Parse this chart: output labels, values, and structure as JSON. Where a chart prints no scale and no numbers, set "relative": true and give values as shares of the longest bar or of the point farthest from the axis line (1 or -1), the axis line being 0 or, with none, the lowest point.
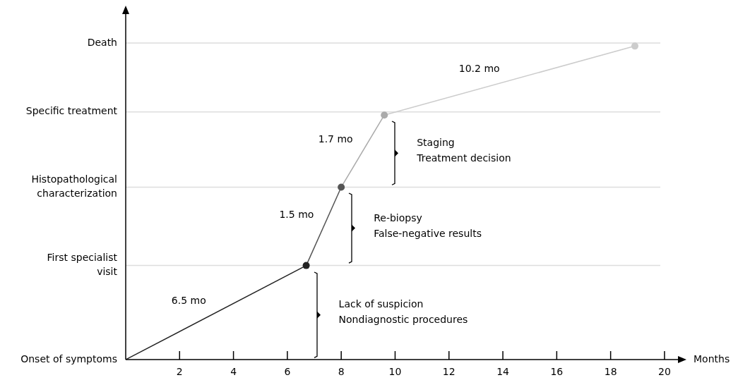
{
  "chart_data": {
    "type": "line",
    "xlabel": "Months",
    "relative": true,
    "xlim": [
      0,
      20.5
    ],
    "xticks": [
      2,
      4,
      6,
      8,
      10,
      12,
      14,
      16,
      18,
      20
    ],
    "grid": false,
    "legend": false,
    "marker": "circle",
    "line_style": "solid",
    "series": [
      {
        "color": "#222222",
        "x": [
          0,
          6.7
        ],
        "values": [
          0,
          0.3
        ]
      },
      {
        "color": "#555555",
        "x": [
          6.7,
          8.0
        ],
        "values": [
          0.3,
          0.55
        ]
      },
      {
        "color": "#aaaaaa",
        "x": [
          8.0,
          9.6
        ],
        "values": [
          0.55,
          0.78
        ]
      },
      {
        "color": "#cccccc",
        "x": [
          9.6,
          18.9
        ],
        "values": [
          0.78,
          1
        ]
      }
    ],
    "ref_lines": [
      {
        "axis": "y",
        "value": 0.3,
        "label": "First specialist\nvisit",
        "color": "#dddddd"
      },
      {
        "axis": "y",
        "value": 0.55,
        "label": "Histopathological\ncharacterization",
        "color": "#dddddd"
      },
      {
        "axis": "y",
        "value": 0.79,
        "label": "Specific treatment",
        "color": "#dddddd"
      },
      {
        "axis": "y",
        "value": 1.01,
        "label": "Death",
        "color": "#dddddd"
      }
    ],
    "annotations": [
      {
        "text": "Onset of symptoms",
        "x": 0,
        "y": 0
      },
      "6.5 mo",
      "1.5 mo",
      "1.7 mo",
      "10.2 mo",
      "Lack of suspicion\nNondiagnostic procedures",
      "Re-biopsy\nFalse-negative results",
      "Staging\nTreatment decision"
    ]
  }
}
